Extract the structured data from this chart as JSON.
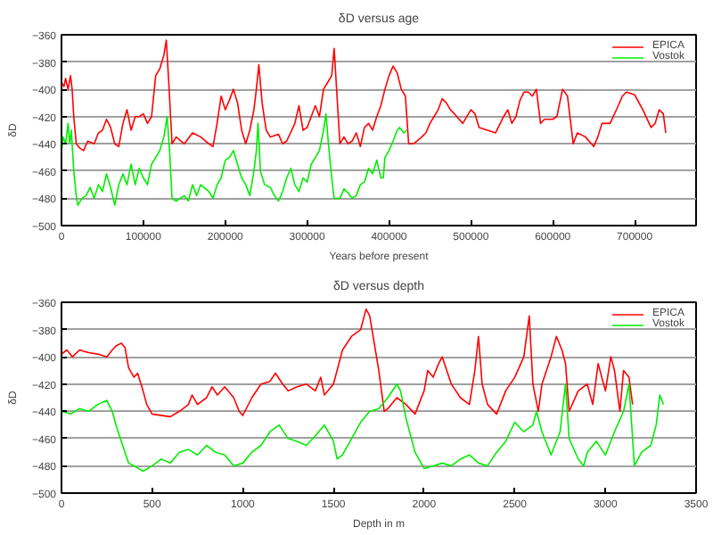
{
  "chart_data": [
    {
      "type": "line",
      "title": "δD versus age",
      "xlabel": "Years before present",
      "ylabel": "δD",
      "xlim": [
        0,
        775000
      ],
      "xticks": [
        0,
        100000,
        200000,
        300000,
        400000,
        500000,
        600000,
        700000
      ],
      "ylim": [
        -500,
        -360
      ],
      "yticks": [
        -500,
        -480,
        -460,
        -440,
        -420,
        -400,
        -380,
        -360
      ],
      "grid": "y",
      "legend": "top right",
      "series": [
        {
          "name": "EPICA",
          "color": "#ff0000",
          "x": [
            0,
            3000,
            5000,
            8000,
            11000,
            13000,
            15000,
            18000,
            22000,
            27000,
            32000,
            40000,
            45000,
            50000,
            55000,
            60000,
            65000,
            70000,
            75000,
            80000,
            85000,
            90000,
            95000,
            100000,
            105000,
            110000,
            115000,
            120000,
            125000,
            128000,
            131000,
            135000,
            140000,
            150000,
            160000,
            170000,
            180000,
            185000,
            190000,
            195000,
            200000,
            205000,
            210000,
            215000,
            220000,
            225000,
            230000,
            235000,
            238000,
            241000,
            245000,
            250000,
            255000,
            265000,
            270000,
            275000,
            285000,
            290000,
            295000,
            300000,
            305000,
            310000,
            315000,
            320000,
            325000,
            330000,
            333000,
            336000,
            340000,
            345000,
            350000,
            355000,
            360000,
            365000,
            370000,
            375000,
            380000,
            385000,
            390000,
            395000,
            400000,
            405000,
            410000,
            415000,
            420000,
            424000,
            430000,
            440000,
            445000,
            450000,
            455000,
            460000,
            465000,
            470000,
            475000,
            480000,
            490000,
            500000,
            505000,
            510000,
            520000,
            530000,
            540000,
            545000,
            550000,
            555000,
            560000,
            565000,
            570000,
            575000,
            580000,
            585000,
            590000,
            600000,
            605000,
            612000,
            618000,
            625000,
            630000,
            640000,
            650000,
            655000,
            660000,
            670000,
            680000,
            685000,
            690000,
            700000,
            710000,
            720000,
            725000,
            730000,
            735000,
            738000
          ],
          "values": [
            -395,
            -398,
            -392,
            -400,
            -390,
            -400,
            -420,
            -440,
            -443,
            -445,
            -438,
            -440,
            -432,
            -430,
            -422,
            -428,
            -440,
            -442,
            -425,
            -415,
            -430,
            -420,
            -420,
            -418,
            -425,
            -420,
            -390,
            -385,
            -375,
            -364,
            -395,
            -440,
            -435,
            -440,
            -432,
            -435,
            -440,
            -442,
            -425,
            -405,
            -415,
            -408,
            -400,
            -410,
            -430,
            -440,
            -430,
            -415,
            -400,
            -382,
            -410,
            -430,
            -435,
            -433,
            -440,
            -438,
            -425,
            -412,
            -430,
            -428,
            -420,
            -412,
            -420,
            -400,
            -395,
            -390,
            -370,
            -400,
            -440,
            -435,
            -440,
            -438,
            -432,
            -442,
            -428,
            -425,
            -430,
            -420,
            -412,
            -400,
            -390,
            -383,
            -388,
            -400,
            -405,
            -440,
            -440,
            -435,
            -432,
            -425,
            -420,
            -415,
            -407,
            -410,
            -415,
            -418,
            -425,
            -415,
            -418,
            -428,
            -430,
            -432,
            -420,
            -415,
            -425,
            -420,
            -408,
            -402,
            -402,
            -405,
            -400,
            -425,
            -422,
            -422,
            -420,
            -400,
            -405,
            -440,
            -432,
            -435,
            -442,
            -435,
            -425,
            -425,
            -412,
            -405,
            -402,
            -404,
            -415,
            -428,
            -425,
            -415,
            -418,
            -432
          ]
        },
        {
          "name": "Vostok",
          "color": "#00ee00",
          "x": [
            0,
            2000,
            5000,
            8000,
            10000,
            12000,
            15000,
            18000,
            20000,
            25000,
            30000,
            35000,
            40000,
            45000,
            50000,
            55000,
            60000,
            65000,
            70000,
            75000,
            80000,
            85000,
            90000,
            95000,
            100000,
            105000,
            110000,
            115000,
            120000,
            125000,
            129000,
            132000,
            135000,
            140000,
            150000,
            155000,
            160000,
            165000,
            170000,
            180000,
            185000,
            190000,
            195000,
            200000,
            205000,
            210000,
            215000,
            220000,
            225000,
            230000,
            235000,
            238000,
            240000,
            243000,
            248000,
            255000,
            260000,
            265000,
            270000,
            275000,
            280000,
            285000,
            290000,
            295000,
            300000,
            305000,
            310000,
            315000,
            320000,
            323000,
            326000,
            330000,
            333000,
            340000,
            345000,
            350000,
            355000,
            360000,
            365000,
            370000,
            375000,
            380000,
            385000,
            390000,
            393000,
            395000,
            400000,
            405000,
            410000,
            413000,
            418000,
            422000
          ],
          "values": [
            -445,
            -435,
            -440,
            -425,
            -440,
            -430,
            -460,
            -478,
            -485,
            -480,
            -478,
            -472,
            -480,
            -470,
            -475,
            -462,
            -472,
            -485,
            -470,
            -462,
            -470,
            -455,
            -470,
            -458,
            -465,
            -470,
            -455,
            -450,
            -445,
            -435,
            -420,
            -445,
            -480,
            -482,
            -478,
            -482,
            -470,
            -478,
            -470,
            -475,
            -480,
            -470,
            -465,
            -452,
            -450,
            -445,
            -455,
            -465,
            -470,
            -478,
            -460,
            -445,
            -425,
            -460,
            -470,
            -472,
            -478,
            -482,
            -475,
            -465,
            -458,
            -470,
            -475,
            -465,
            -468,
            -455,
            -450,
            -445,
            -430,
            -418,
            -440,
            -465,
            -480,
            -480,
            -473,
            -476,
            -480,
            -478,
            -470,
            -468,
            -458,
            -462,
            -452,
            -465,
            -465,
            -450,
            -445,
            -438,
            -430,
            -428,
            -432,
            -430
          ]
        }
      ]
    },
    {
      "type": "line",
      "title": "δD versus depth",
      "xlabel": "Depth in m",
      "ylabel": "δD",
      "xlim": [
        0,
        3500
      ],
      "xticks": [
        0,
        500,
        1000,
        1500,
        2000,
        2500,
        3000,
        3500
      ],
      "ylim": [
        -500,
        -360
      ],
      "yticks": [
        -500,
        -480,
        -460,
        -440,
        -420,
        -400,
        -380,
        -360
      ],
      "grid": "y",
      "legend": "top right",
      "series": [
        {
          "name": "EPICA",
          "color": "#ff0000",
          "x": [
            0,
            30,
            60,
            100,
            150,
            200,
            250,
            280,
            300,
            330,
            350,
            370,
            400,
            420,
            450,
            470,
            500,
            550,
            600,
            650,
            700,
            720,
            750,
            800,
            830,
            860,
            900,
            950,
            980,
            1000,
            1050,
            1100,
            1150,
            1180,
            1220,
            1250,
            1300,
            1350,
            1400,
            1430,
            1450,
            1500,
            1550,
            1600,
            1650,
            1680,
            1700,
            1750,
            1780,
            1800,
            1850,
            1900,
            1950,
            2000,
            2020,
            2050,
            2080,
            2100,
            2150,
            2200,
            2250,
            2280,
            2300,
            2320,
            2350,
            2400,
            2450,
            2500,
            2550,
            2580,
            2600,
            2630,
            2650,
            2700,
            2730,
            2760,
            2780,
            2800,
            2850,
            2900,
            2930,
            2960,
            3000,
            3030,
            3050,
            3080,
            3100,
            3130,
            3150
          ],
          "values": [
            -398,
            -395,
            -400,
            -395,
            -397,
            -398,
            -400,
            -395,
            -392,
            -390,
            -393,
            -408,
            -415,
            -412,
            -425,
            -435,
            -442,
            -443,
            -444,
            -440,
            -435,
            -428,
            -435,
            -430,
            -422,
            -428,
            -422,
            -430,
            -440,
            -443,
            -430,
            -420,
            -418,
            -412,
            -420,
            -425,
            -422,
            -420,
            -425,
            -415,
            -428,
            -420,
            -395,
            -385,
            -380,
            -365,
            -370,
            -410,
            -440,
            -438,
            -430,
            -435,
            -442,
            -425,
            -410,
            -415,
            -405,
            -400,
            -420,
            -430,
            -435,
            -410,
            -385,
            -420,
            -435,
            -442,
            -425,
            -415,
            -400,
            -370,
            -420,
            -440,
            -420,
            -400,
            -385,
            -395,
            -405,
            -440,
            -425,
            -420,
            -435,
            -405,
            -425,
            -400,
            -410,
            -440,
            -410,
            -415,
            -435
          ]
        },
        {
          "name": "Vostok",
          "color": "#00ee00",
          "x": [
            0,
            50,
            100,
            150,
            200,
            250,
            280,
            300,
            320,
            350,
            370,
            400,
            450,
            500,
            550,
            600,
            650,
            700,
            750,
            800,
            850,
            900,
            950,
            1000,
            1050,
            1100,
            1150,
            1200,
            1250,
            1300,
            1350,
            1400,
            1450,
            1500,
            1520,
            1550,
            1600,
            1650,
            1700,
            1750,
            1800,
            1850,
            1870,
            1900,
            1950,
            2000,
            2050,
            2100,
            2150,
            2200,
            2250,
            2300,
            2350,
            2400,
            2450,
            2500,
            2550,
            2600,
            2620,
            2650,
            2700,
            2750,
            2780,
            2800,
            2850,
            2880,
            2900,
            2950,
            3000,
            3050,
            3100,
            3130,
            3160,
            3200,
            3250,
            3280,
            3300,
            3320
          ],
          "values": [
            -440,
            -442,
            -438,
            -440,
            -435,
            -432,
            -440,
            -450,
            -458,
            -470,
            -478,
            -480,
            -484,
            -480,
            -475,
            -478,
            -470,
            -468,
            -472,
            -465,
            -470,
            -472,
            -480,
            -478,
            -470,
            -465,
            -455,
            -450,
            -460,
            -462,
            -465,
            -458,
            -450,
            -462,
            -475,
            -472,
            -460,
            -448,
            -440,
            -438,
            -430,
            -420,
            -425,
            -445,
            -470,
            -482,
            -480,
            -478,
            -480,
            -475,
            -472,
            -478,
            -480,
            -470,
            -462,
            -448,
            -455,
            -450,
            -440,
            -455,
            -472,
            -455,
            -420,
            -460,
            -475,
            -480,
            -470,
            -462,
            -472,
            -455,
            -440,
            -420,
            -480,
            -470,
            -465,
            -450,
            -428,
            -435
          ]
        }
      ]
    }
  ]
}
